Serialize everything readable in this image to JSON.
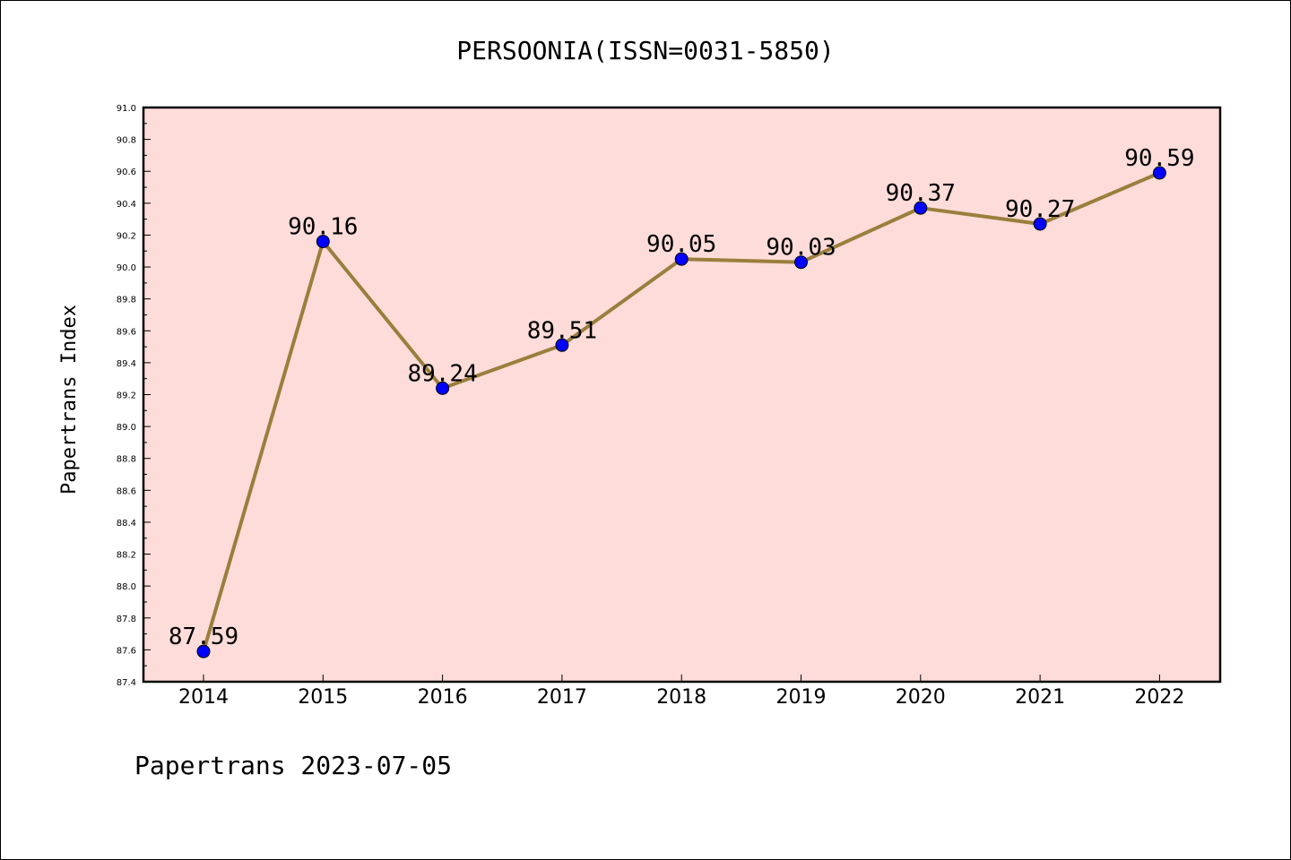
{
  "chart_data": {
    "type": "line",
    "title": "PERSOONIA(ISSN=0031-5850)",
    "xlabel": "",
    "ylabel": "Papertrans Index",
    "categories": [
      "2014",
      "2015",
      "2016",
      "2017",
      "2018",
      "2019",
      "2020",
      "2021",
      "2022"
    ],
    "series": [
      {
        "values": [
          87.59,
          90.16,
          89.24,
          89.51,
          90.05,
          90.03,
          90.37,
          90.27,
          90.59
        ],
        "labels": [
          "87.59",
          "90.16",
          "89.24",
          "89.51",
          "90.05",
          "90.03",
          "90.37",
          "90.27",
          "90.59"
        ]
      }
    ],
    "ylim": [
      87.4,
      91.0
    ],
    "yticks": [
      "87.4",
      "87.6",
      "87.8",
      "88.0",
      "88.2",
      "88.4",
      "88.6",
      "88.8",
      "89.0",
      "89.2",
      "89.4",
      "89.6",
      "89.8",
      "90.0",
      "90.2",
      "90.4",
      "90.6",
      "90.8",
      "91.0"
    ],
    "grid": false,
    "colors": {
      "plot_background": "#fddcda",
      "line": "#9a7e3c",
      "marker": "#0000ff"
    }
  },
  "footer": "Papertrans 2023-07-05"
}
